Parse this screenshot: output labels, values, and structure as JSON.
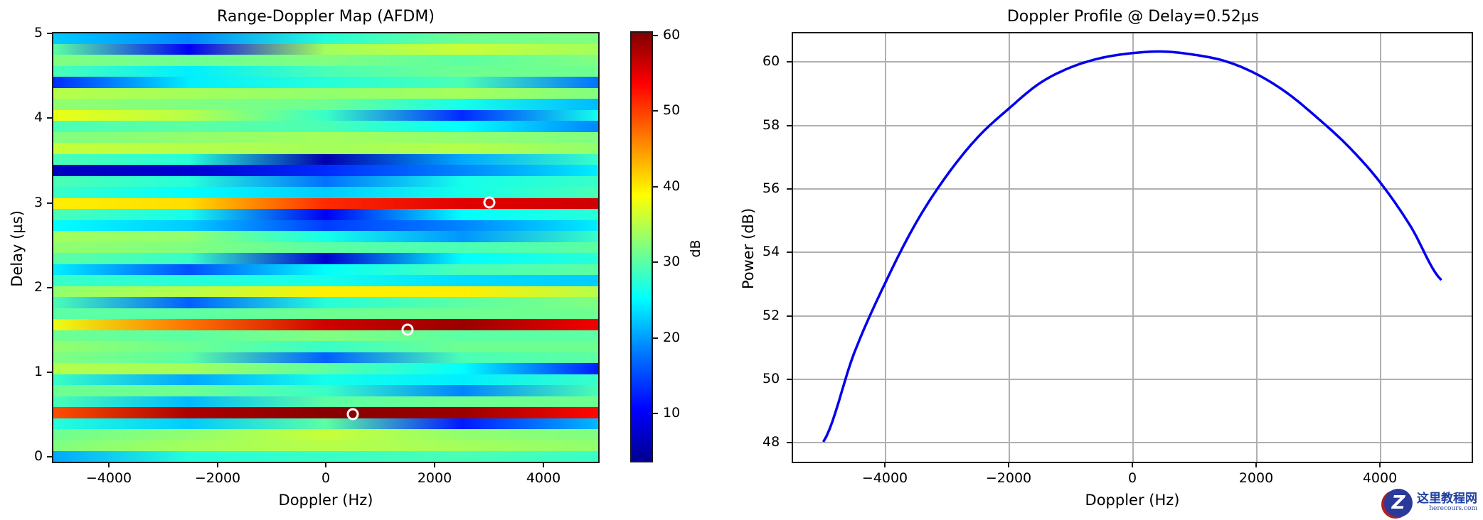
{
  "figure": {
    "left_panel": {
      "title": "Range-Doppler Map (AFDM)",
      "xlabel": "Doppler (Hz)",
      "ylabel": "Delay (µs)",
      "xticks": [
        "−4000",
        "−2000",
        "0",
        "2000",
        "4000"
      ],
      "yticks": [
        "0",
        "1",
        "2",
        "3",
        "4",
        "5"
      ],
      "colorbar": {
        "label": "dB",
        "ticks": [
          "10",
          "20",
          "30",
          "40",
          "50",
          "60"
        ]
      }
    },
    "right_panel": {
      "title": "Doppler Profile @ Delay=0.52µs",
      "xlabel": "Doppler (Hz)",
      "ylabel": "Power (dB)",
      "xticks": [
        "−4000",
        "−2000",
        "0",
        "2000",
        "4000"
      ],
      "yticks": [
        "48",
        "50",
        "52",
        "54",
        "56",
        "58",
        "60"
      ],
      "line_color": "#0000ee"
    },
    "watermark": {
      "logo_letter": "Z",
      "text_cn": "这里教程网",
      "text_en": "herecours.com"
    }
  },
  "chart_data": [
    {
      "type": "heatmap",
      "title": "Range-Doppler Map (AFDM)",
      "xlabel": "Doppler (Hz)",
      "ylabel": "Delay (µs)",
      "xlim": [
        -5000,
        5000
      ],
      "ylim": [
        0,
        5
      ],
      "colormap": "jet",
      "colorbar_label": "dB",
      "colorbar_range": [
        3.5,
        60.5
      ],
      "colorbar_ticks": [
        10,
        20,
        30,
        40,
        50,
        60
      ],
      "grid": false,
      "targets": [
        {
          "doppler_hz": 500,
          "delay_us": 0.5,
          "peak_db": 60
        },
        {
          "doppler_hz": 1500,
          "delay_us": 1.5,
          "peak_db": 58
        },
        {
          "doppler_hz": 3000,
          "delay_us": 3.0,
          "peak_db": 54
        }
      ],
      "rows_top_to_bottom_db_at_x": {
        "x_samples_hz": [
          -5000,
          -2500,
          0,
          2500,
          5000
        ],
        "rows": [
          [
            22,
            18,
            27,
            31,
            32
          ],
          [
            30,
            10,
            34,
            36,
            34
          ],
          [
            32,
            31,
            32,
            30,
            32
          ],
          [
            29,
            24,
            29,
            31,
            31
          ],
          [
            13,
            24,
            27,
            29,
            17
          ],
          [
            35,
            34,
            33,
            34,
            32
          ],
          [
            33,
            32,
            31,
            26,
            21
          ],
          [
            38,
            35,
            28,
            13,
            26
          ],
          [
            29,
            30,
            29,
            25,
            18
          ],
          [
            32,
            33,
            34,
            33,
            32
          ],
          [
            36,
            35,
            34,
            35,
            33
          ],
          [
            29,
            27,
            6,
            20,
            28
          ],
          [
            7,
            8,
            13,
            18,
            24
          ],
          [
            29,
            27,
            17,
            26,
            28
          ],
          [
            28,
            25,
            22,
            26,
            29
          ],
          [
            40,
            41,
            51,
            55,
            56
          ],
          [
            29,
            26,
            10,
            25,
            27
          ],
          [
            25,
            22,
            14,
            18,
            24
          ],
          [
            34,
            33,
            26,
            19,
            28
          ],
          [
            33,
            32,
            30,
            29,
            30
          ],
          [
            30,
            28,
            8,
            25,
            27
          ],
          [
            24,
            15,
            25,
            29,
            30
          ],
          [
            28,
            27,
            26,
            23,
            22
          ],
          [
            33,
            35,
            40,
            40,
            35
          ],
          [
            29,
            16,
            27,
            30,
            32
          ],
          [
            30,
            30,
            31,
            31,
            31
          ],
          [
            38,
            47,
            56,
            59,
            54
          ],
          [
            31,
            30,
            32,
            30,
            30
          ],
          [
            33,
            31,
            28,
            31,
            31
          ],
          [
            32,
            30,
            16,
            29,
            30
          ],
          [
            35,
            34,
            30,
            25,
            12
          ],
          [
            28,
            20,
            26,
            24,
            28
          ],
          [
            31,
            31,
            28,
            18,
            29
          ],
          [
            29,
            21,
            30,
            31,
            31
          ],
          [
            49,
            58,
            60,
            59,
            53
          ],
          [
            27,
            22,
            30,
            12,
            21
          ],
          [
            31,
            33,
            36,
            33,
            32
          ],
          [
            32,
            34,
            35,
            34,
            33
          ],
          [
            20,
            27,
            28,
            29,
            28
          ]
        ]
      }
    },
    {
      "type": "line",
      "title": "Doppler Profile @ Delay=0.52µs",
      "xlabel": "Doppler (Hz)",
      "ylabel": "Power (dB)",
      "xlim": [
        -5500,
        5500
      ],
      "ylim": [
        47.4,
        60.9
      ],
      "grid": true,
      "series": [
        {
          "name": "Doppler profile",
          "color": "#0000ee",
          "x": [
            -5000,
            -4500,
            -4000,
            -3500,
            -3000,
            -2500,
            -2000,
            -1500,
            -1000,
            -500,
            0,
            500,
            1000,
            1500,
            2000,
            2500,
            3000,
            3500,
            4000,
            4500,
            5000
          ],
          "y": [
            48.0,
            50.8,
            53.0,
            54.9,
            56.4,
            57.6,
            58.5,
            59.3,
            59.8,
            60.1,
            60.25,
            60.3,
            60.2,
            60.0,
            59.6,
            59.0,
            58.2,
            57.3,
            56.2,
            54.8,
            53.1
          ]
        }
      ]
    }
  ]
}
